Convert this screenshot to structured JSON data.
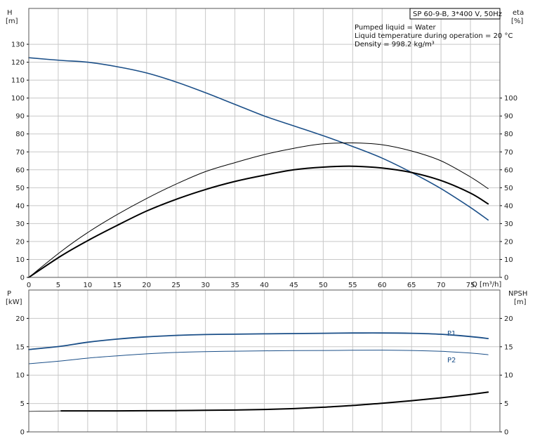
{
  "chart_data": [
    {
      "type": "line",
      "panel": "head-efficiency",
      "title": "SP 60-9-B, 3*400 V, 50Hz",
      "annotations": [
        "Pumped liquid = Water",
        "Liquid temperature during operation = 20 °C",
        "Density = 998.2 kg/m³"
      ],
      "xlabel": "Q [m³/h]",
      "xlim": [
        0,
        80
      ],
      "x_ticks": [
        0,
        5,
        10,
        15,
        20,
        25,
        30,
        35,
        40,
        45,
        50,
        55,
        60,
        65,
        70,
        75
      ],
      "left_axis": {
        "label_top": "H",
        "label_unit": "[m]",
        "ylim": [
          0,
          150
        ],
        "ticks": [
          0,
          10,
          20,
          30,
          40,
          50,
          60,
          70,
          80,
          90,
          100,
          110,
          120,
          130
        ]
      },
      "right_axis": {
        "label_top": "eta",
        "label_unit": "[%]",
        "ylim": [
          0,
          150
        ],
        "ticks": [
          0,
          10,
          20,
          30,
          40,
          50,
          60,
          70,
          80,
          90,
          100
        ]
      },
      "grid": true,
      "series": [
        {
          "color": "#1b4f88",
          "width": 1.6,
          "x": [
            0,
            5.5,
            10,
            15,
            20,
            25,
            30,
            35,
            40,
            45,
            50,
            55,
            60,
            65,
            70,
            75,
            78
          ],
          "y": [
            122.5,
            121,
            120,
            117.5,
            114,
            109,
            103,
            96.5,
            90,
            84.5,
            79,
            73,
            66.5,
            58.5,
            49.5,
            39,
            32
          ]
        },
        {
          "color": "#000000",
          "width": 1.0,
          "x": [
            0,
            5.5,
            10,
            15,
            20,
            25,
            30,
            35,
            40,
            45,
            50,
            55,
            60,
            65,
            70,
            75,
            78
          ],
          "y": [
            0,
            14.5,
            25,
            35,
            44,
            52,
            59,
            64,
            68.5,
            72,
            74.5,
            75,
            74,
            70.5,
            65,
            56,
            49.5
          ]
        },
        {
          "color": "#000000",
          "width": 2.0,
          "x": [
            0,
            5.5,
            10,
            15,
            20,
            25,
            30,
            35,
            40,
            45,
            50,
            55,
            60,
            65,
            70,
            75,
            78
          ],
          "y": [
            0,
            12,
            20.5,
            29,
            37,
            43.5,
            49,
            53.5,
            57,
            60,
            61.5,
            62,
            61,
            58.5,
            54,
            47,
            41
          ]
        }
      ]
    },
    {
      "type": "line",
      "panel": "power-npsh",
      "xlim": [
        0,
        80
      ],
      "x_ticks": [
        0,
        5,
        10,
        15,
        20,
        25,
        30,
        35,
        40,
        45,
        50,
        55,
        60,
        65,
        70,
        75
      ],
      "left_axis": {
        "label_top": "P",
        "label_unit": "[kW]",
        "ylim": [
          0,
          25
        ],
        "ticks": [
          0,
          5,
          10,
          15,
          20
        ]
      },
      "right_axis": {
        "label_top": "NPSH",
        "label_unit": "[m]",
        "ylim": [
          0,
          25
        ],
        "ticks": [
          0,
          5,
          10,
          15,
          20
        ]
      },
      "grid": true,
      "series": [
        {
          "name": "P1",
          "color": "#1b4f88",
          "width": 1.8,
          "x": [
            0,
            5.5,
            10,
            15,
            20,
            25,
            30,
            35,
            40,
            45,
            50,
            55,
            60,
            65,
            70,
            75,
            78
          ],
          "y": [
            14.5,
            15.1,
            15.8,
            16.35,
            16.75,
            17.0,
            17.15,
            17.22,
            17.28,
            17.33,
            17.38,
            17.42,
            17.43,
            17.38,
            17.2,
            16.8,
            16.45
          ]
        },
        {
          "name": "P2",
          "color": "#1b4f88",
          "width": 1.0,
          "x": [
            0,
            5.5,
            10,
            15,
            20,
            25,
            30,
            35,
            40,
            45,
            50,
            55,
            60,
            65,
            70,
            75,
            78
          ],
          "y": [
            12.0,
            12.5,
            13.0,
            13.4,
            13.75,
            14.0,
            14.15,
            14.22,
            14.28,
            14.32,
            14.35,
            14.38,
            14.4,
            14.35,
            14.2,
            13.9,
            13.6
          ]
        },
        {
          "color": "#000000",
          "width": 2.0,
          "x": [
            5.5,
            10,
            15,
            20,
            25,
            30,
            35,
            40,
            45,
            50,
            55,
            60,
            65,
            70,
            75,
            78
          ],
          "y": [
            3.7,
            3.7,
            3.7,
            3.72,
            3.75,
            3.8,
            3.85,
            3.95,
            4.1,
            4.35,
            4.65,
            5.05,
            5.5,
            6.0,
            6.6,
            7.0
          ]
        },
        {
          "color": "#000000",
          "width": 0.8,
          "x": [
            0,
            5.5
          ],
          "y": [
            3.6,
            3.7
          ]
        }
      ]
    }
  ]
}
